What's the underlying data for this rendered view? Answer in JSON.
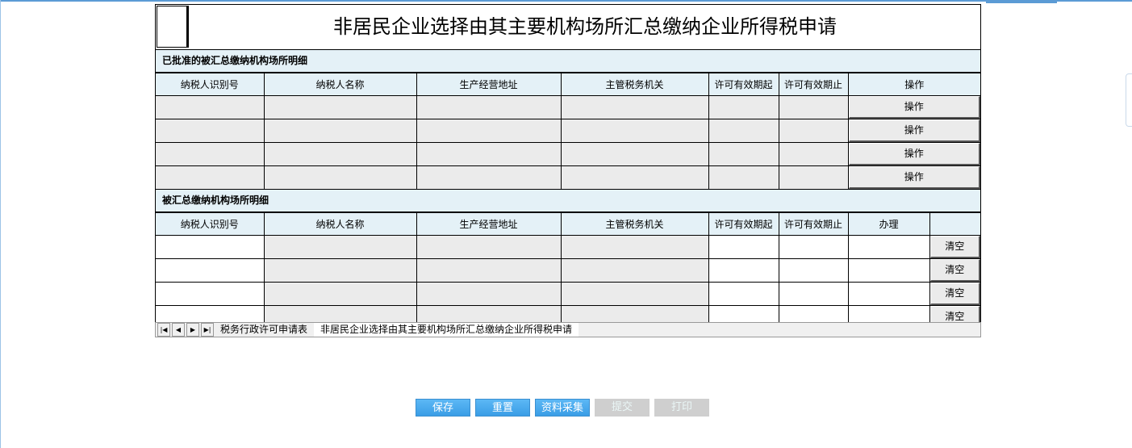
{
  "title": "非居民企业选择由其主要机构场所汇总缴纳企业所得税申请",
  "section1": {
    "label": "已批准的被汇总缴纳机构场所明细",
    "headers": [
      "纳税人识别号",
      "纳税人名称",
      "生产经营地址",
      "主管税务机关",
      "许可有效期起",
      "许可有效期止",
      "操作"
    ],
    "action_label": "操作"
  },
  "section2": {
    "label": "被汇总缴纳机构场所明细",
    "headers": [
      "纳税人识别号",
      "纳税人名称",
      "生产经营地址",
      "主管税务机关",
      "许可有效期起",
      "许可有效期止",
      "办理",
      ""
    ],
    "clear_label": "清空"
  },
  "sheet_tabs": [
    "税务行政许可申请表",
    "非居民企业选择由其主要机构场所汇总缴纳企业所得税申请"
  ],
  "nav": [
    "first",
    "prev",
    "next",
    "last"
  ],
  "buttons": [
    {
      "label": "保存",
      "enabled": true
    },
    {
      "label": "重置",
      "enabled": true
    },
    {
      "label": "资料采集",
      "enabled": true
    },
    {
      "label": "提交",
      "enabled": false
    },
    {
      "label": "打印",
      "enabled": false
    }
  ],
  "colors": {
    "accent": "#3a9de6",
    "header_bg": "#e4f1f7",
    "readonly_bg": "#ebebeb"
  }
}
